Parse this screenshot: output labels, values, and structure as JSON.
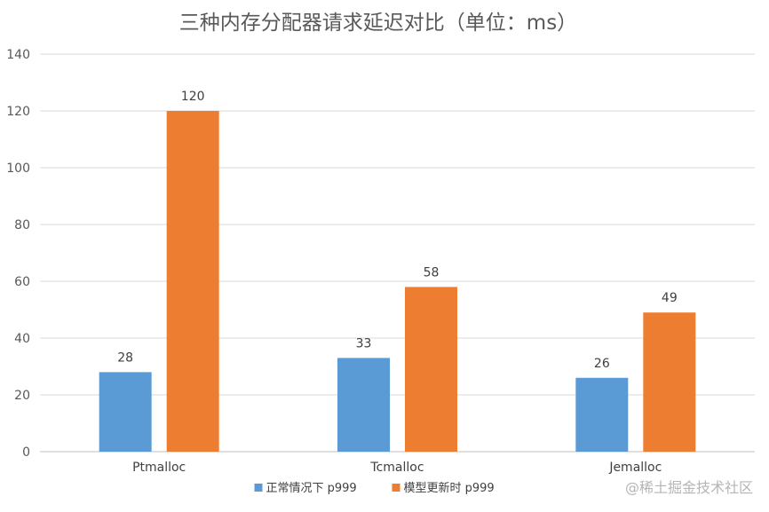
{
  "chart_data": {
    "type": "bar",
    "title": "三种内存分配器请求延迟对比（单位：ms）",
    "categories": [
      "Ptmalloc",
      "Tcmalloc",
      "Jemalloc"
    ],
    "series": [
      {
        "name": "正常情况下 p999",
        "values": [
          28,
          33,
          26
        ],
        "color": "#5b9bd5"
      },
      {
        "name": "模型更新时 p999",
        "values": [
          120,
          58,
          49
        ],
        "color": "#ed7d31"
      }
    ],
    "ylim": [
      0,
      140
    ],
    "y_ticks": [
      0,
      20,
      40,
      60,
      80,
      100,
      120,
      140
    ],
    "grid": true,
    "legend_position": "bottom"
  },
  "watermark": "@稀土掘金技术社区"
}
